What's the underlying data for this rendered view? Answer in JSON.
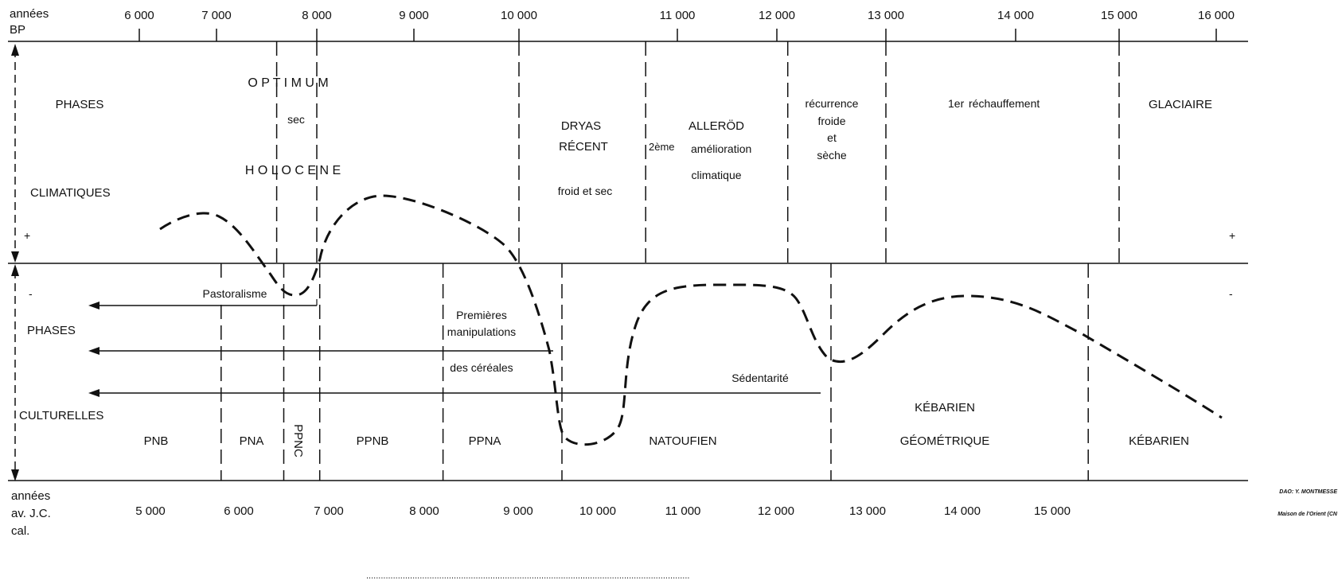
{
  "top_axis": {
    "label_line1": "années",
    "label_line2": "BP",
    "ticks": [
      {
        "label": "6 000",
        "t": 6000
      },
      {
        "label": "7 000",
        "t": 7000
      },
      {
        "label": "8 000",
        "t": 8000
      },
      {
        "label": "9 000",
        "t": 9000
      },
      {
        "label": "10 000",
        "t": 10000
      },
      {
        "label": "11 000",
        "t": 11000
      },
      {
        "label": "12 000",
        "t": 12000
      },
      {
        "label": "13 000",
        "t": 13000
      },
      {
        "label": "14 000",
        "t": 14000
      },
      {
        "label": "15 000",
        "t": 15000
      },
      {
        "label": "16 000",
        "t": 16000
      }
    ]
  },
  "bottom_axis": {
    "label_line1": "années",
    "label_line2": "av. J.C.",
    "label_line3": "cal.",
    "ticks": [
      {
        "label": "5 000",
        "t": 5000
      },
      {
        "label": "6 000",
        "t": 6000
      },
      {
        "label": "7 000",
        "t": 7000
      },
      {
        "label": "8 000",
        "t": 8000
      },
      {
        "label": "9 000",
        "t": 9000
      },
      {
        "label": "10 000",
        "t": 10000
      },
      {
        "label": "11 000",
        "t": 11000
      },
      {
        "label": "12 000",
        "t": 12000
      },
      {
        "label": "13 000",
        "t": 13000
      },
      {
        "label": "14 000",
        "t": 14000
      },
      {
        "label": "15 000",
        "t": 15000
      }
    ]
  },
  "climatic": {
    "side_label_line1": "PHASES",
    "side_label_line2": "CLIMATIQUES",
    "plus_left": "+",
    "plus_right": "+",
    "boundaries_bp": [
      7600,
      8000,
      10000,
      10800,
      12100,
      13000,
      15000
    ],
    "holocene": {
      "optimum": "O P T I M U M",
      "sec": "sec",
      "holocene": "H O L O C E N E"
    },
    "dryas": {
      "line1": "DRYAS",
      "line2": "RÉCENT",
      "line3": "froid et sec"
    },
    "allerod": {
      "line1": "ALLERÖD",
      "line2_sup": "2ème",
      "line2": "amélioration",
      "line3": "climatique"
    },
    "recurrence": {
      "line1": "récurrence",
      "line2": "froide",
      "line3": "et",
      "line4": "sèche"
    },
    "rechauffement": {
      "sup": "1er",
      "text": "réchauffement"
    },
    "glaciaire": "GLACIAIRE"
  },
  "cultural": {
    "side_label_line1": "PHASES",
    "side_label_line2": "CULTURELLES",
    "minus_left": "-",
    "minus_right": "-",
    "boundaries_cal": [
      5800,
      6500,
      6900,
      8200,
      9550,
      12600,
      15400
    ],
    "periods": [
      {
        "label": "PNB"
      },
      {
        "label": "PNA"
      },
      {
        "label": "PPNC"
      },
      {
        "label": "PPNB"
      },
      {
        "label": "PPNA"
      },
      {
        "label": "NATOUFIEN"
      },
      {
        "label": "KÉBARIEN",
        "label2": "GÉOMÉTRIQUE"
      },
      {
        "label": "KÉBARIEN"
      }
    ],
    "arrows": {
      "pastoralisme": "Pastoralisme",
      "premieres_line1": "Premières",
      "premieres_line2": "manipulations",
      "premieres_line3": "des céréales",
      "sedentarite": "Sédentarité"
    }
  },
  "credits": {
    "dao": "DAO: Y. MONTMESSE",
    "maison": "Maison de l'Orient (CN"
  },
  "footer_caption": "....................................................................................................................................."
}
